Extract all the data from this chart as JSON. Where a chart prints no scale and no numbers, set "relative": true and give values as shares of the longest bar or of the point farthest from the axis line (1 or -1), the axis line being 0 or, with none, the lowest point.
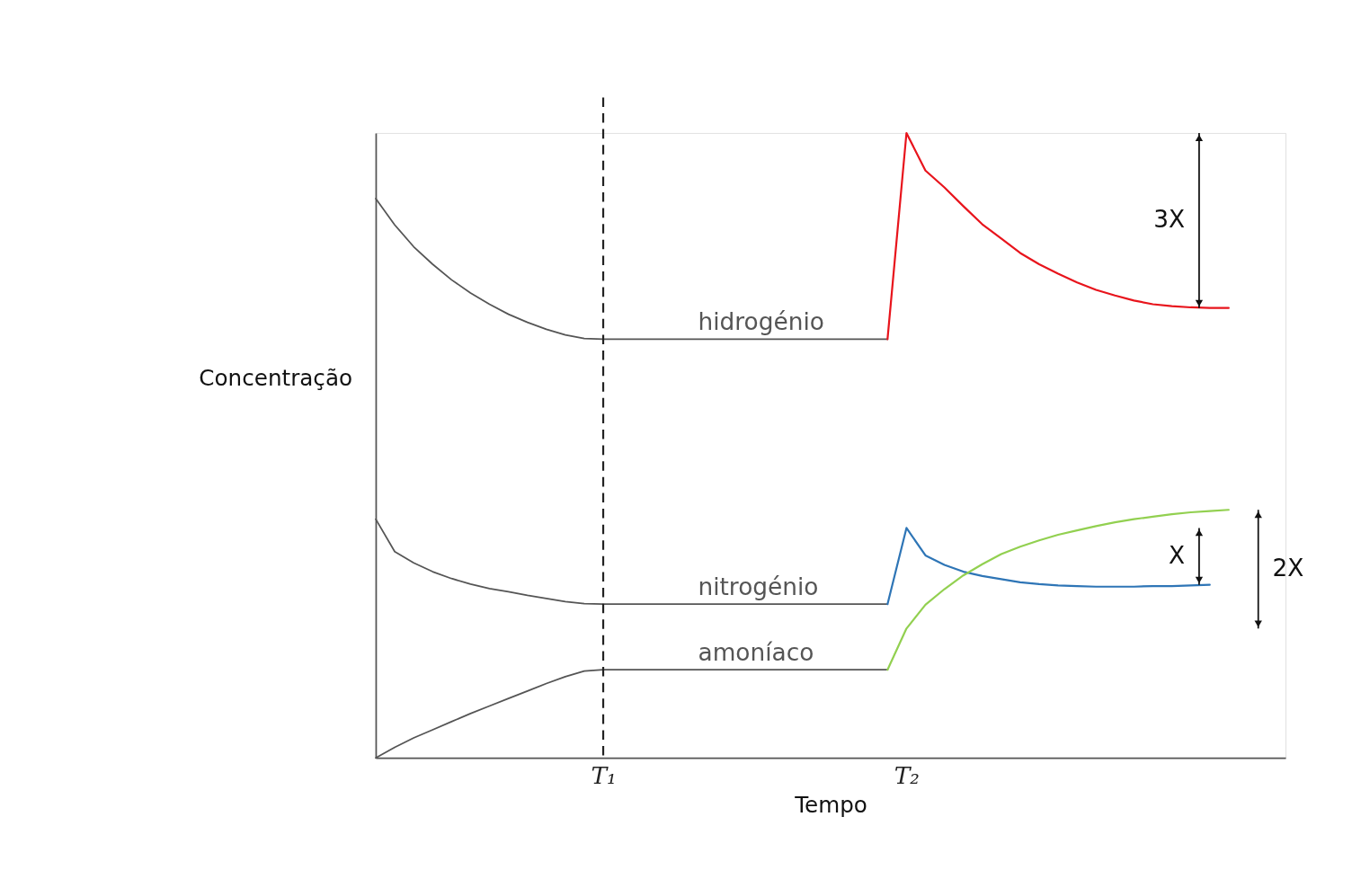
{
  "chart_data": {
    "type": "line",
    "relative": true,
    "xlabel": "Tempo",
    "ylabel": "Concentração",
    "grid": false,
    "marker": "none",
    "line_style": "solid",
    "categories": [
      null,
      null,
      null,
      null,
      null,
      null,
      null,
      null,
      null,
      null,
      null,
      null,
      "T₁",
      null,
      null,
      null,
      null,
      null,
      null,
      null,
      null,
      null,
      null,
      null,
      null,
      null,
      null,
      null,
      "T₂",
      null,
      null,
      null,
      null,
      null,
      null,
      null,
      null,
      null,
      null,
      null,
      null,
      null,
      null,
      null,
      null,
      null,
      null,
      null,
      null
    ],
    "series": [
      {
        "name": "hidrogénio",
        "color": "#555555",
        "values": [
          0.895,
          0.853,
          0.818,
          0.79,
          0.765,
          0.744,
          0.726,
          0.71,
          0.697,
          0.686,
          0.677,
          0.671,
          0.67,
          0.67,
          0.67,
          0.67,
          0.67,
          0.67,
          0.67,
          0.67,
          0.67,
          0.67,
          0.67,
          0.67,
          0.67,
          0.67,
          0.67,
          0.67,
          null,
          null,
          null,
          null,
          null,
          null,
          null,
          null,
          null,
          null,
          null,
          null,
          null,
          null,
          null,
          null,
          null,
          null,
          null,
          null,
          null
        ]
      },
      {
        "color": "#e8141c",
        "values": [
          null,
          null,
          null,
          null,
          null,
          null,
          null,
          null,
          null,
          null,
          null,
          null,
          null,
          null,
          null,
          null,
          null,
          null,
          null,
          null,
          null,
          null,
          null,
          null,
          null,
          null,
          null,
          0.67,
          1.0,
          0.94,
          0.913,
          0.883,
          0.854,
          0.831,
          0.808,
          0.79,
          0.775,
          0.761,
          0.749,
          0.74,
          0.732,
          0.726,
          0.723,
          0.721,
          0.72,
          0.72,
          null,
          null,
          null
        ]
      },
      {
        "name": "nitrogénio",
        "color": "#555555",
        "values": [
          0.382,
          0.33,
          0.312,
          0.298,
          0.287,
          0.278,
          0.271,
          0.266,
          0.26,
          0.255,
          0.25,
          0.247,
          0.246,
          0.246,
          0.246,
          0.246,
          0.246,
          0.246,
          0.246,
          0.246,
          0.246,
          0.246,
          0.246,
          0.246,
          0.246,
          0.246,
          0.246,
          0.246,
          null,
          null,
          null,
          null,
          null,
          null,
          null,
          null,
          null,
          null,
          null,
          null,
          null,
          null,
          null,
          null,
          null,
          null,
          null,
          null,
          null
        ]
      },
      {
        "color": "#2e75b6",
        "values": [
          null,
          null,
          null,
          null,
          null,
          null,
          null,
          null,
          null,
          null,
          null,
          null,
          null,
          null,
          null,
          null,
          null,
          null,
          null,
          null,
          null,
          null,
          null,
          null,
          null,
          null,
          null,
          0.246,
          0.368,
          0.324,
          0.309,
          0.298,
          0.291,
          0.286,
          0.281,
          0.278,
          0.276,
          0.275,
          0.274,
          0.274,
          0.274,
          0.275,
          0.275,
          0.276,
          0.277,
          null,
          null,
          null,
          null
        ]
      },
      {
        "name": "amoníaco",
        "color": "#555555",
        "values": [
          0,
          0.017,
          0.032,
          0.045,
          0.058,
          0.071,
          0.083,
          0.095,
          0.107,
          0.119,
          0.13,
          0.139,
          0.141,
          0.141,
          0.141,
          0.141,
          0.141,
          0.141,
          0.141,
          0.141,
          0.141,
          0.141,
          0.141,
          0.141,
          0.141,
          0.141,
          0.141,
          0.141,
          null,
          null,
          null,
          null,
          null,
          null,
          null,
          null,
          null,
          null,
          null,
          null,
          null,
          null,
          null,
          null,
          null,
          null,
          null,
          null,
          null
        ]
      },
      {
        "color": "#92d050",
        "values": [
          null,
          null,
          null,
          null,
          null,
          null,
          null,
          null,
          null,
          null,
          null,
          null,
          null,
          null,
          null,
          null,
          null,
          null,
          null,
          null,
          null,
          null,
          null,
          null,
          null,
          null,
          null,
          0.141,
          0.207,
          0.245,
          0.27,
          0.292,
          0.31,
          0.326,
          0.338,
          0.348,
          0.357,
          0.364,
          0.371,
          0.377,
          0.382,
          0.386,
          0.39,
          0.393,
          0.395,
          0.397,
          null,
          null,
          null
        ]
      }
    ],
    "ref_lines": [
      {
        "axis": "x",
        "value": "T₁",
        "line_style": "dashed",
        "color": "#222222"
      }
    ],
    "annotations": [
      "3X",
      "X",
      "2X"
    ]
  }
}
